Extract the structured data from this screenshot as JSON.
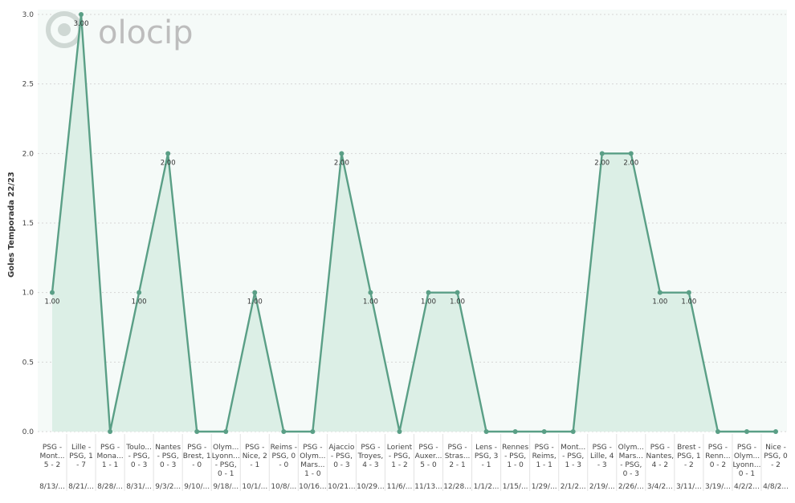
{
  "watermark": {
    "logo_text": "olocip"
  },
  "chart_data": {
    "type": "area",
    "ylabel": "Goles Temporada 22/23",
    "ylim": [
      0,
      3
    ],
    "yticks": [
      "0.0",
      "0.5",
      "1.0",
      "1.5",
      "2.0",
      "2.5",
      "3.0"
    ],
    "grid": true,
    "colors": {
      "line": "#5a9f86",
      "fill": "#dcefe6",
      "plot_bg": "#f5faf8",
      "grid": "#d6d6d6"
    },
    "categories": [
      {
        "match": [
          "PSG -",
          "Mont...",
          "5 - 2"
        ],
        "date": "8/13/...",
        "value": 1,
        "label": "1.00"
      },
      {
        "match": [
          "Lille -",
          "PSG, 1",
          "- 7"
        ],
        "date": "8/21/...",
        "value": 3,
        "label": "3.00"
      },
      {
        "match": [
          "PSG -",
          "Mona...",
          "1 - 1"
        ],
        "date": "8/28/...",
        "value": 0,
        "label": ""
      },
      {
        "match": [
          "Toulo...",
          "- PSG,",
          "0 - 3"
        ],
        "date": "8/31/...",
        "value": 1,
        "label": "1.00"
      },
      {
        "match": [
          "Nantes",
          "- PSG,",
          "0 - 3"
        ],
        "date": "9/3/2...",
        "value": 2,
        "label": "2.00"
      },
      {
        "match": [
          "PSG -",
          "Brest, 1",
          "- 0"
        ],
        "date": "9/10/...",
        "value": 0,
        "label": ""
      },
      {
        "match": [
          "Olym...",
          "Lyonn...",
          "- PSG,",
          "0 - 1"
        ],
        "date": "9/18/...",
        "value": 0,
        "label": ""
      },
      {
        "match": [
          "PSG -",
          "Nice, 2",
          "- 1"
        ],
        "date": "10/1/...",
        "value": 1,
        "label": "1.00"
      },
      {
        "match": [
          "Reims -",
          "PSG, 0",
          "- 0"
        ],
        "date": "10/8/...",
        "value": 0,
        "label": ""
      },
      {
        "match": [
          "PSG -",
          "Olym...",
          "Mars...",
          "1 - 0"
        ],
        "date": "10/16...",
        "value": 0,
        "label": ""
      },
      {
        "match": [
          "Ajaccio",
          "- PSG,",
          "0 - 3"
        ],
        "date": "10/21...",
        "value": 2,
        "label": "2.00"
      },
      {
        "match": [
          "PSG -",
          "Troyes,",
          "4 - 3"
        ],
        "date": "10/29...",
        "value": 1,
        "label": "1.00"
      },
      {
        "match": [
          "Lorient",
          "- PSG,",
          "1 - 2"
        ],
        "date": "11/6/...",
        "value": 0,
        "label": ""
      },
      {
        "match": [
          "PSG -",
          "Auxer...",
          "5 - 0"
        ],
        "date": "11/13...",
        "value": 1,
        "label": "1.00"
      },
      {
        "match": [
          "PSG -",
          "Stras...",
          "2 - 1"
        ],
        "date": "12/28...",
        "value": 1,
        "label": "1.00"
      },
      {
        "match": [
          "Lens -",
          "PSG, 3",
          "- 1"
        ],
        "date": "1/1/2...",
        "value": 0,
        "label": ""
      },
      {
        "match": [
          "Rennes",
          "- PSG,",
          "1 - 0"
        ],
        "date": "1/15/...",
        "value": 0,
        "label": ""
      },
      {
        "match": [
          "PSG -",
          "Reims,",
          "1 - 1"
        ],
        "date": "1/29/...",
        "value": 0,
        "label": ""
      },
      {
        "match": [
          "Mont...",
          "- PSG,",
          "1 - 3"
        ],
        "date": "2/1/2...",
        "value": 0,
        "label": ""
      },
      {
        "match": [
          "PSG -",
          "Lille, 4",
          "- 3"
        ],
        "date": "2/19/...",
        "value": 2,
        "label": "2.00"
      },
      {
        "match": [
          "Olym...",
          "Mars...",
          "- PSG,",
          "0 - 3"
        ],
        "date": "2/26/...",
        "value": 2,
        "label": "2.00"
      },
      {
        "match": [
          "PSG -",
          "Nantes,",
          "4 - 2"
        ],
        "date": "3/4/2...",
        "value": 1,
        "label": "1.00"
      },
      {
        "match": [
          "Brest -",
          "PSG, 1",
          "- 2"
        ],
        "date": "3/11/...",
        "value": 1,
        "label": "1.00"
      },
      {
        "match": [
          "PSG -",
          "Renn...",
          "0 - 2"
        ],
        "date": "3/19/...",
        "value": 0,
        "label": ""
      },
      {
        "match": [
          "PSG -",
          "Olym...",
          "Lyonn...",
          "0 - 1"
        ],
        "date": "4/2/2...",
        "value": 0,
        "label": ""
      },
      {
        "match": [
          "Nice -",
          "PSG, 0",
          "- 2"
        ],
        "date": "4/8/2...",
        "value": 0,
        "label": ""
      }
    ]
  }
}
